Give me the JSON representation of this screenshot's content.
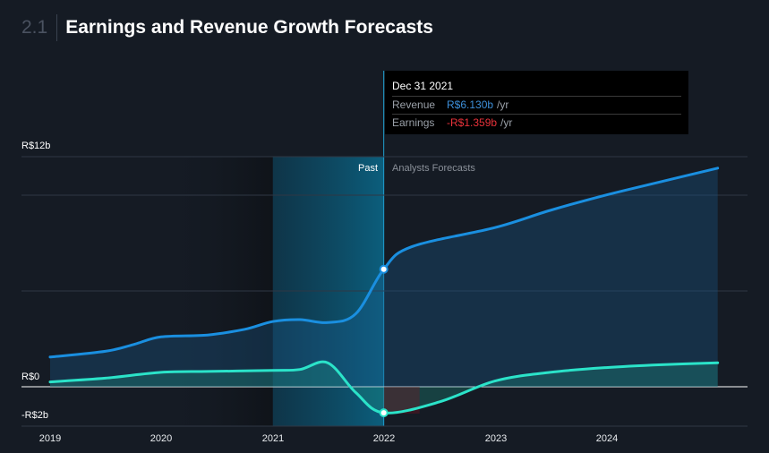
{
  "header": {
    "section_number": "2.1",
    "title": "Earnings and Revenue Growth Forecasts"
  },
  "tooltip": {
    "date": "Dec 31 2021",
    "revenue_label": "Revenue",
    "revenue_value": "R$6.130b",
    "earnings_label": "Earnings",
    "earnings_value": "-R$1.359b",
    "unit": "/yr"
  },
  "periods": {
    "past": "Past",
    "forecast": "Analysts Forecasts"
  },
  "colors": {
    "revenue": "#1a8fe0",
    "earnings": "#2be3c9",
    "background": "#151b24",
    "highlight": "#0a5a78"
  },
  "chart_data": {
    "type": "line",
    "y_tick_labels": [
      "R$12b",
      "R$0",
      "-R$2b"
    ],
    "x_tick_labels": [
      "2019",
      "2020",
      "2021",
      "2022",
      "2023",
      "2024"
    ],
    "ylim": [
      -2,
      12
    ],
    "grid": true,
    "series": [
      {
        "name": "Revenue",
        "points": [
          [
            "2019-01-01",
            1.55
          ],
          [
            "2019-07-01",
            1.85
          ],
          [
            "2019-10-01",
            2.2
          ],
          [
            "2019-12-31",
            2.6
          ],
          [
            "2020-06-01",
            2.7
          ],
          [
            "2020-10-01",
            3.0
          ],
          [
            "2020-12-31",
            3.4
          ],
          [
            "2021-03-31",
            3.5
          ],
          [
            "2021-06-30",
            3.35
          ],
          [
            "2021-09-30",
            3.8
          ],
          [
            "2021-12-31",
            6.13
          ],
          [
            "2022-04-01",
            7.3
          ],
          [
            "2022-12-31",
            8.3
          ],
          [
            "2023-06-30",
            9.2
          ],
          [
            "2023-12-31",
            10.0
          ],
          [
            "2024-06-30",
            10.7
          ],
          [
            "2024-12-31",
            11.4
          ]
        ]
      },
      {
        "name": "Earnings",
        "points": [
          [
            "2019-01-01",
            0.25
          ],
          [
            "2019-07-01",
            0.45
          ],
          [
            "2019-12-31",
            0.75
          ],
          [
            "2020-06-01",
            0.8
          ],
          [
            "2020-12-31",
            0.85
          ],
          [
            "2021-03-31",
            0.9
          ],
          [
            "2021-06-30",
            1.25
          ],
          [
            "2021-09-30",
            -0.3
          ],
          [
            "2021-12-31",
            -1.359
          ],
          [
            "2022-06-30",
            -0.8
          ],
          [
            "2022-12-31",
            0.3
          ],
          [
            "2023-06-30",
            0.75
          ],
          [
            "2023-12-31",
            1.0
          ],
          [
            "2024-06-30",
            1.15
          ],
          [
            "2024-12-31",
            1.25
          ]
        ]
      }
    ],
    "highlight_start": "2021-01-01",
    "divider_date": "2021-12-31"
  }
}
